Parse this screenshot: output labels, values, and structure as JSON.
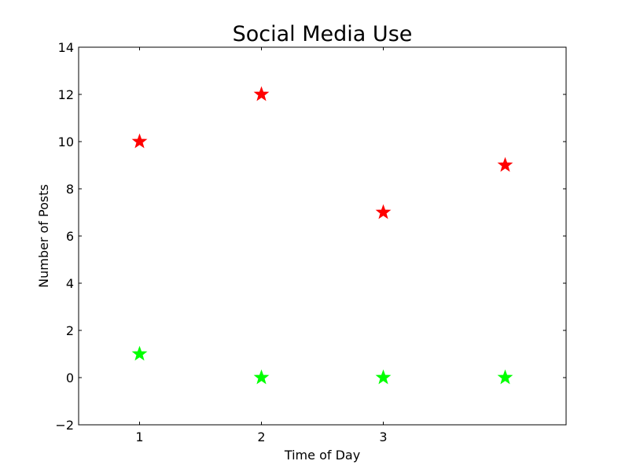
{
  "chart_data": {
    "type": "scatter",
    "title": "Social Media Use",
    "xlabel": "Time of Day",
    "ylabel": "Number of Posts",
    "xlim": [
      0.5,
      4.5
    ],
    "ylim": [
      -2,
      14
    ],
    "x_ticks": [
      1,
      2,
      3
    ],
    "x_tick_labels": [
      "1",
      "2",
      "3"
    ],
    "y_ticks": [
      -2,
      0,
      2,
      4,
      6,
      8,
      10,
      12,
      14
    ],
    "y_tick_labels": [
      "−2",
      "0",
      "2",
      "4",
      "6",
      "8",
      "10",
      "12",
      "14"
    ],
    "grid": false,
    "series": [
      {
        "marker": "star",
        "color": "#ff0000",
        "points": [
          {
            "x": 1,
            "y": 10
          },
          {
            "x": 2,
            "y": 12
          },
          {
            "x": 3,
            "y": 7
          },
          {
            "x": 4,
            "y": 9
          }
        ]
      },
      {
        "marker": "star",
        "color": "#00ff00",
        "points": [
          {
            "x": 1,
            "y": 1
          },
          {
            "x": 2,
            "y": 0
          },
          {
            "x": 3,
            "y": 0
          },
          {
            "x": 4,
            "y": 0
          }
        ]
      }
    ]
  }
}
